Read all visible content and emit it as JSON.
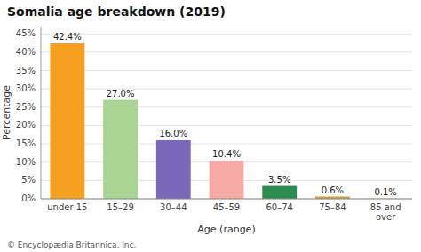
{
  "chart_data": {
    "type": "bar",
    "title": "Somalia age breakdown (2019)",
    "categories": [
      "under 15",
      "15–29",
      "30–44",
      "45–59",
      "60–74",
      "75–84",
      "85 and\nover"
    ],
    "values": [
      42.4,
      27.0,
      16.0,
      10.4,
      3.5,
      0.6,
      0.1
    ],
    "value_labels": [
      "42.4%",
      "27.0%",
      "16.0%",
      "10.4%",
      "3.5%",
      "0.6%",
      "0.1%"
    ],
    "data_labels": true,
    "colors": [
      "#f5a020",
      "#aad491",
      "#7b68bb",
      "#f4aba5",
      "#2e8b50",
      "#c8a040",
      "#d4c9a0"
    ],
    "xlabel": "Age (range)",
    "ylabel": "Percentage",
    "ylim": [
      0,
      47
    ],
    "yticks": [
      {
        "value": 0,
        "label": "0%"
      },
      {
        "value": 5,
        "label": "5%"
      },
      {
        "value": 10,
        "label": "10%"
      },
      {
        "value": 15,
        "label": "15%"
      },
      {
        "value": 20,
        "label": "20%"
      },
      {
        "value": 25,
        "label": "25%"
      },
      {
        "value": 30,
        "label": "30%"
      },
      {
        "value": 35,
        "label": "35%"
      },
      {
        "value": 40,
        "label": "40%"
      },
      {
        "value": 45,
        "label": "45%"
      }
    ],
    "grid": true,
    "footer": "© Encyclopædia Britannica, Inc."
  }
}
